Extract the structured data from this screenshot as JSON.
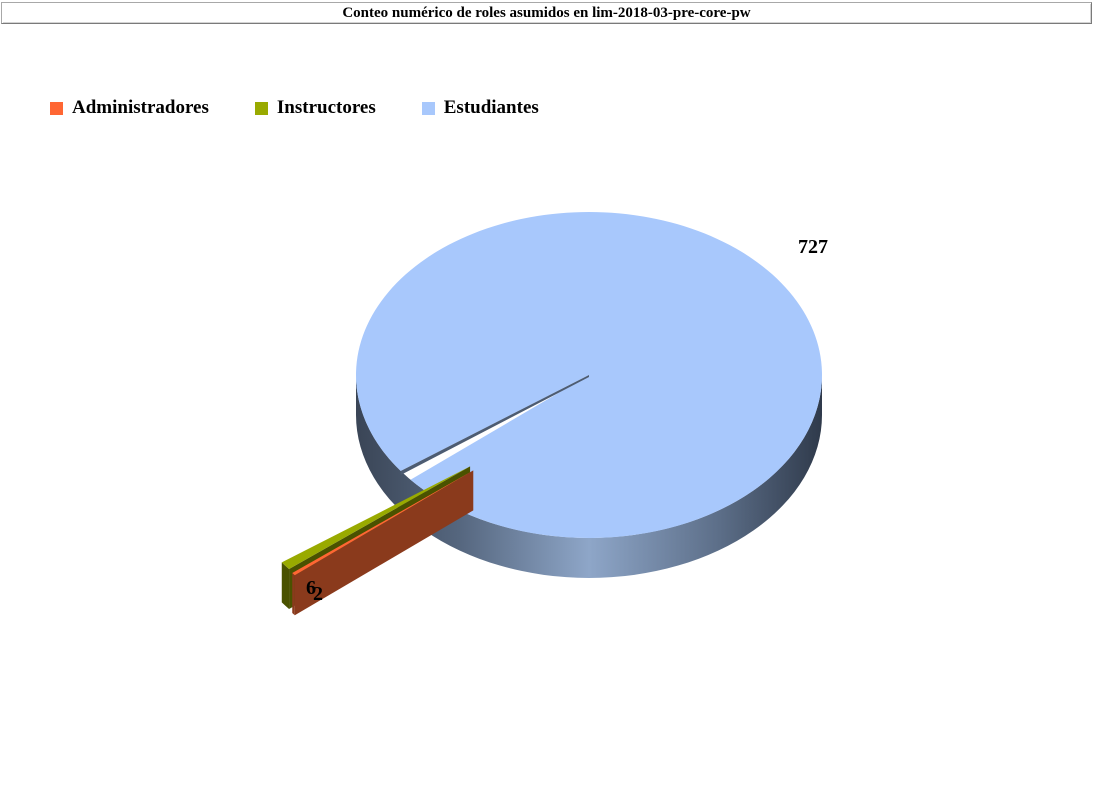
{
  "title": "Conteo numérico de roles asumidos en lim-2018-03-pre-core-pw",
  "chart_data": {
    "type": "pie",
    "style": "3d-exploded",
    "title": "Conteo numérico de roles asumidos en lim-2018-03-pre-core-pw",
    "legend_position": "top-left",
    "categories": [
      "Administradores",
      "Instructores",
      "Estudiantes"
    ],
    "values": [
      2,
      6,
      727
    ],
    "colors": [
      "#ff6633",
      "#99aa00",
      "#a8c8fc"
    ],
    "data_labels": [
      "2",
      "6",
      "727"
    ]
  }
}
